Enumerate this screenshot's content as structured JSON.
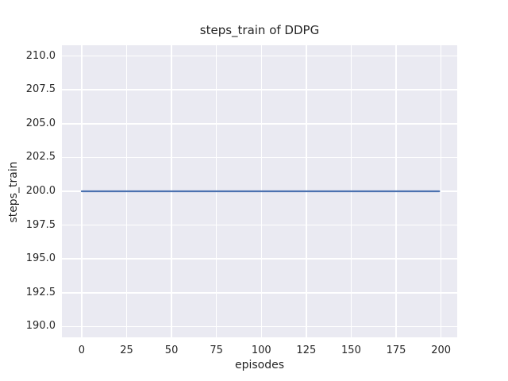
{
  "chart_data": {
    "type": "line",
    "title": "steps_train of DDPG",
    "xlabel": "episodes",
    "ylabel": "steps_train",
    "legend": false,
    "grid": true,
    "xlim": [
      -11,
      209
    ],
    "ylim": [
      189.2,
      210.8
    ],
    "xticks": [
      0,
      25,
      50,
      75,
      100,
      125,
      150,
      175,
      200
    ],
    "xtick_labels": [
      "0",
      "25",
      "50",
      "75",
      "100",
      "125",
      "150",
      "175",
      "200"
    ],
    "yticks": [
      190,
      192.5,
      195,
      197.5,
      200,
      202.5,
      205,
      207.5,
      210
    ],
    "ytick_labels": [
      "190.0",
      "192.5",
      "195.0",
      "197.5",
      "200.0",
      "202.5",
      "205.0",
      "207.5",
      "210.0"
    ],
    "series": [
      {
        "name": "steps_train",
        "color": "#4c72b0",
        "x": [
          0,
          199
        ],
        "y": [
          200,
          200
        ],
        "note": "constant value of 200 steps per episode across all episodes"
      }
    ],
    "colors": {
      "figure_bg": "#ffffff",
      "plot_bg": "#eaeaf2",
      "grid": "#ffffff",
      "text": "#262626"
    }
  }
}
